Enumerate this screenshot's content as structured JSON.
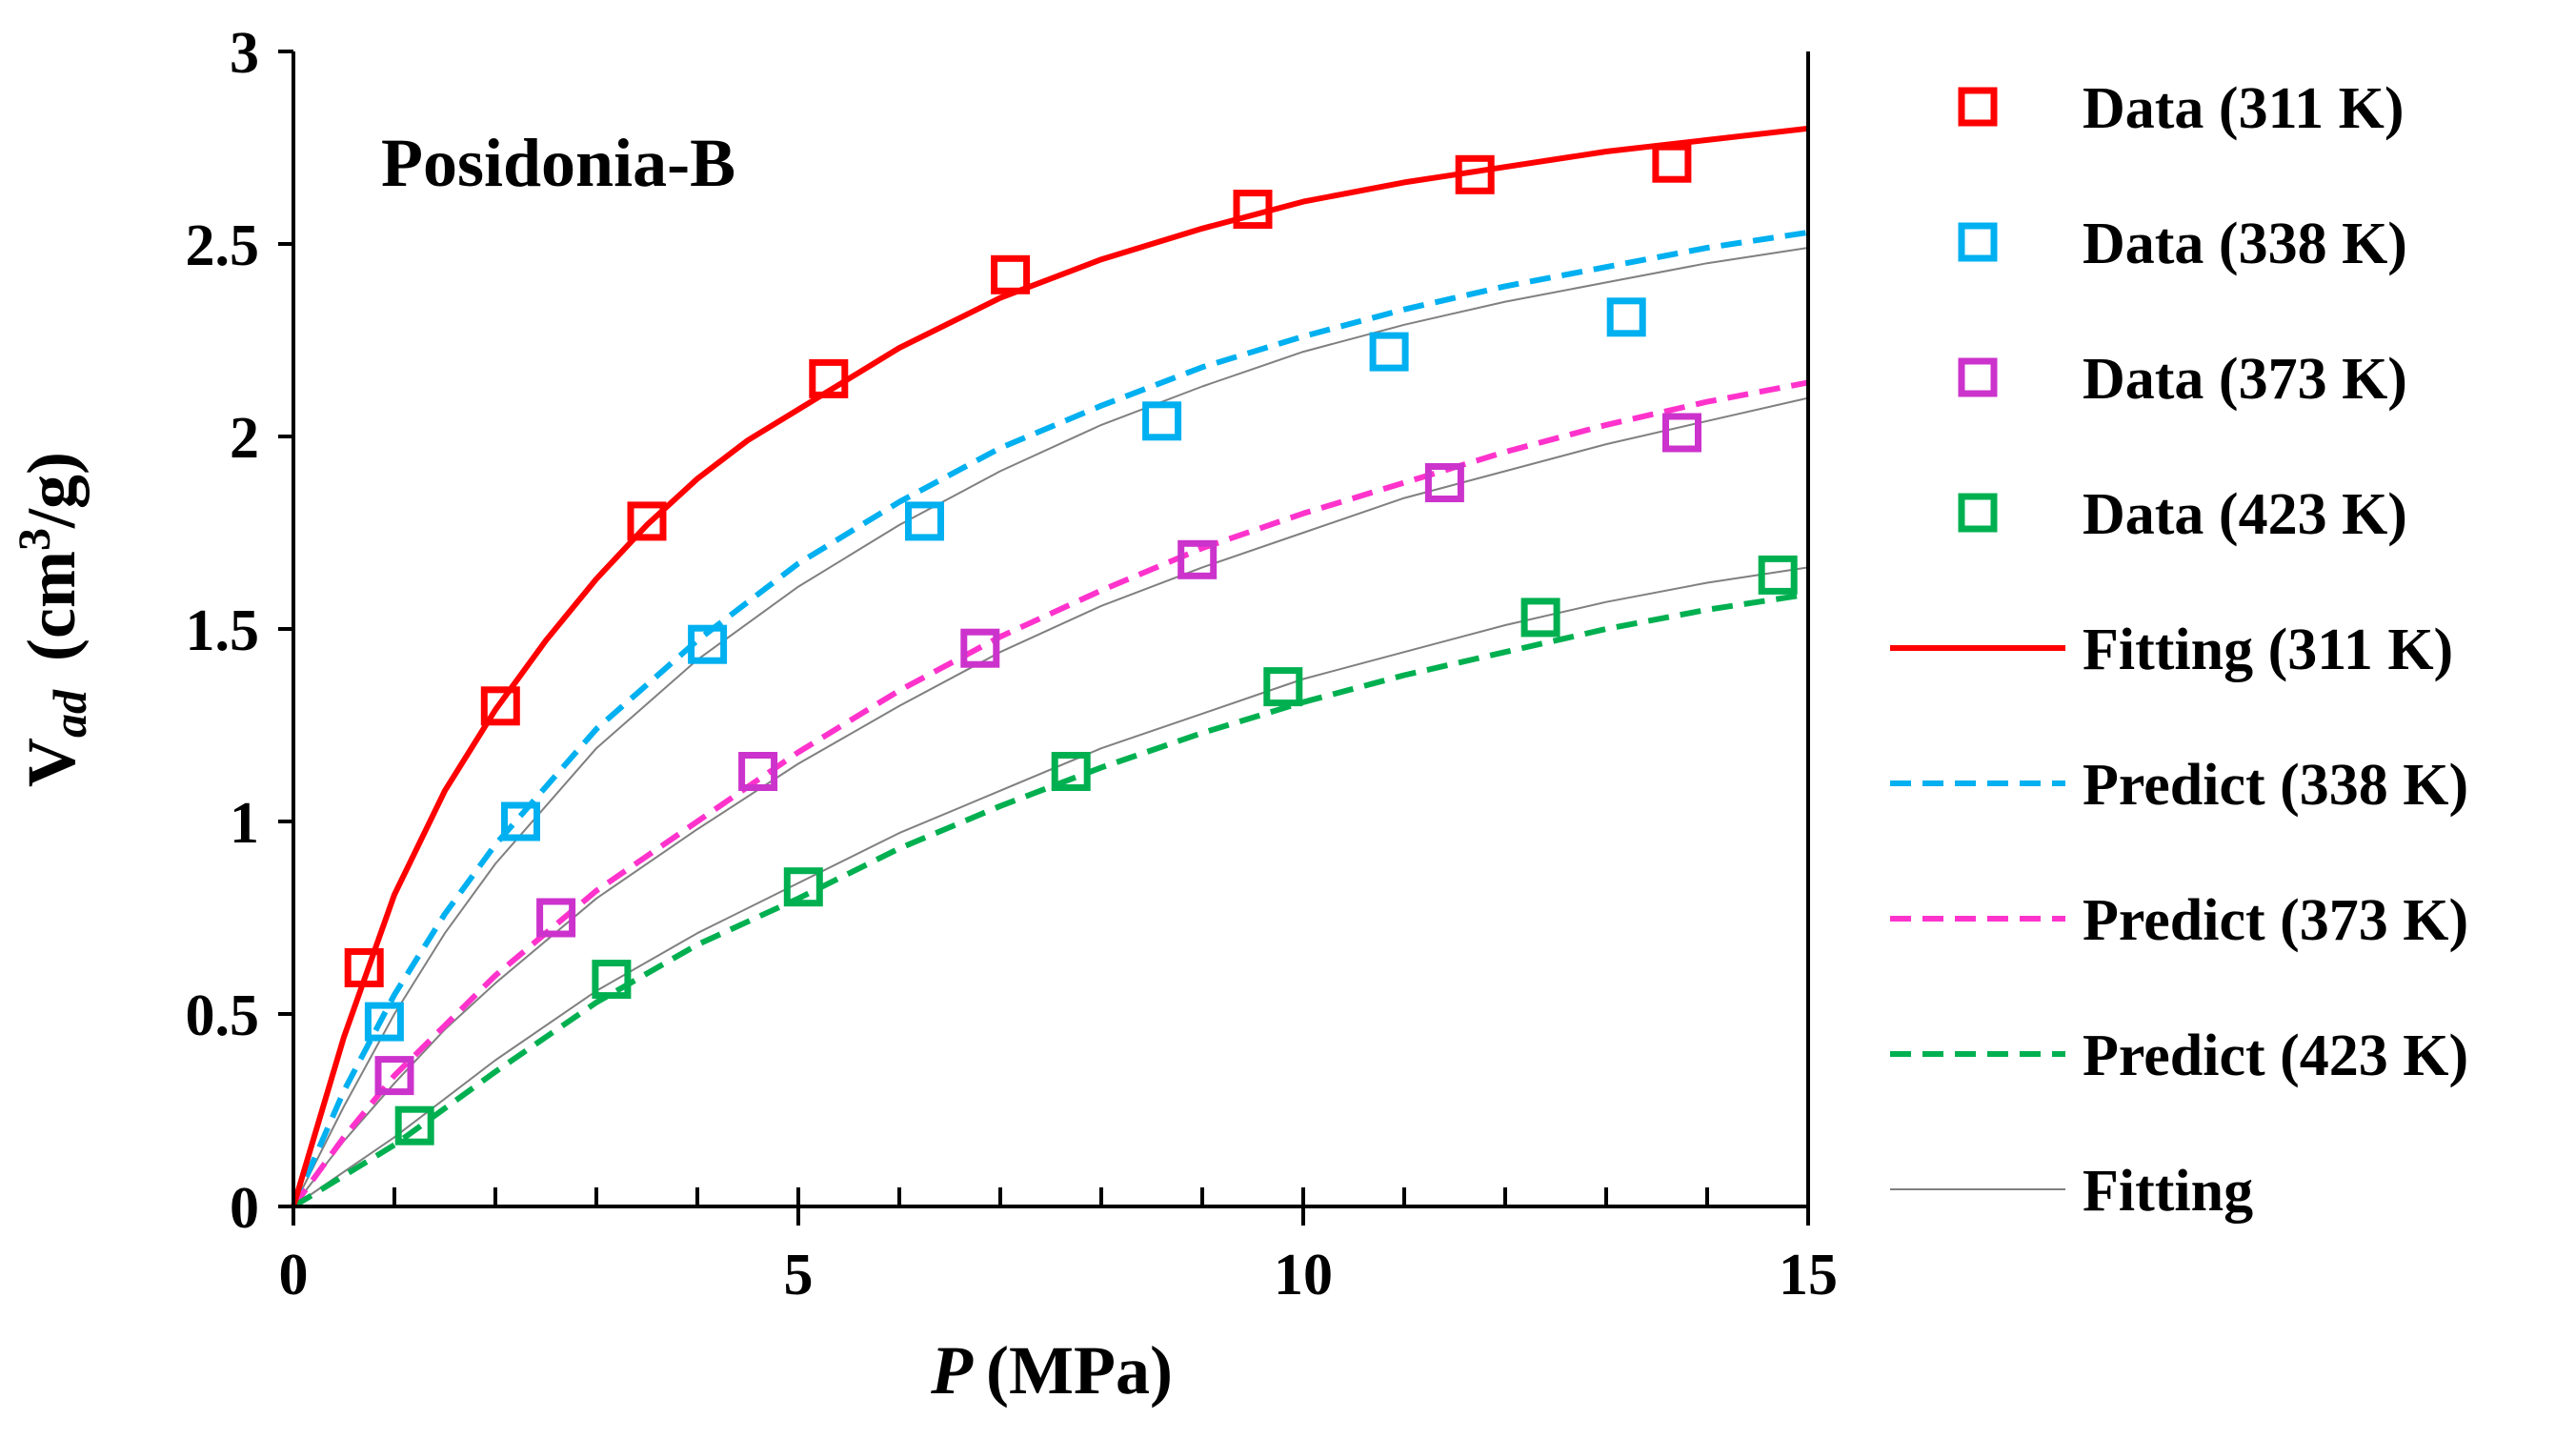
{
  "chart_data": {
    "type": "scatter",
    "title": "Posidonia-B",
    "xlabel_symbol": "P",
    "xlabel_unit": "(MPa)",
    "ylabel_main": "V",
    "ylabel_sub": "ad",
    "ylabel_unit_pre": "(cm",
    "ylabel_unit_sup": "3",
    "ylabel_unit_post": "/g)",
    "xlim": [
      0,
      15
    ],
    "ylim": [
      0,
      3
    ],
    "x_ticks": [
      0,
      5,
      10,
      15
    ],
    "x_tick_labels": [
      "0",
      "5",
      "10",
      "15"
    ],
    "x_minor_step": 1,
    "y_ticks": [
      0,
      0.5,
      1,
      1.5,
      2,
      2.5,
      3
    ],
    "y_tick_labels": [
      "0",
      "0.5",
      "1",
      "1.5",
      "2",
      "2.5",
      "3"
    ],
    "grid": false,
    "legend_position": "right",
    "series": [
      {
        "name": "Data (311 K)",
        "kind": "points",
        "color": "#ff0000",
        "x": [
          0.7,
          2.05,
          3.5,
          5.3,
          7.1,
          9.5,
          11.7,
          13.65
        ],
        "y": [
          0.62,
          1.3,
          1.78,
          2.15,
          2.42,
          2.59,
          2.68,
          2.71
        ]
      },
      {
        "name": "Data (338 K)",
        "kind": "points",
        "color": "#00b0f0",
        "x": [
          0.9,
          2.25,
          4.1,
          6.25,
          8.6,
          10.85,
          13.2
        ],
        "y": [
          0.48,
          1.0,
          1.46,
          1.78,
          2.04,
          2.22,
          2.31
        ]
      },
      {
        "name": "Data (373 K)",
        "kind": "points",
        "color": "#cc33cc",
        "x": [
          1.0,
          2.6,
          4.6,
          6.8,
          8.95,
          11.4,
          13.75
        ],
        "y": [
          0.34,
          0.75,
          1.13,
          1.45,
          1.68,
          1.88,
          2.01
        ]
      },
      {
        "name": "Data (423 K)",
        "kind": "points",
        "color": "#00b050",
        "x": [
          1.2,
          3.15,
          5.05,
          7.7,
          9.8,
          12.35,
          14.7
        ],
        "y": [
          0.21,
          0.59,
          0.83,
          1.13,
          1.35,
          1.53,
          1.64
        ]
      },
      {
        "name": "Fitting (311 K)",
        "kind": "curve",
        "style": "solid",
        "color": "#ff0000",
        "x": [
          0,
          0.5,
          1,
          1.5,
          2,
          2.5,
          3,
          3.5,
          4,
          4.5,
          5,
          6,
          7,
          8,
          9,
          10,
          11,
          12,
          13,
          14,
          15
        ],
        "y": [
          0,
          0.44,
          0.81,
          1.08,
          1.29,
          1.47,
          1.63,
          1.77,
          1.89,
          1.99,
          2.07,
          2.23,
          2.36,
          2.46,
          2.54,
          2.61,
          2.66,
          2.7,
          2.74,
          2.77,
          2.8
        ]
      },
      {
        "name": "Predict (338 K)",
        "kind": "curve",
        "style": "dashed",
        "color": "#00b0f0",
        "x": [
          0,
          0.5,
          1,
          1.5,
          2,
          3,
          4,
          5,
          6,
          7,
          8,
          9,
          10,
          11,
          12,
          13,
          14,
          15
        ],
        "y": [
          0,
          0.3,
          0.55,
          0.76,
          0.94,
          1.24,
          1.47,
          1.67,
          1.83,
          1.97,
          2.08,
          2.18,
          2.26,
          2.33,
          2.39,
          2.44,
          2.49,
          2.53
        ]
      },
      {
        "name": "Predict (373 K)",
        "kind": "curve",
        "style": "dashed",
        "color": "#ff33cc",
        "x": [
          0,
          0.5,
          1,
          1.5,
          2,
          3,
          4,
          5,
          6,
          7,
          8,
          9,
          10,
          11,
          12,
          13,
          14,
          15
        ],
        "y": [
          0,
          0.18,
          0.34,
          0.47,
          0.6,
          0.82,
          1.0,
          1.18,
          1.34,
          1.48,
          1.6,
          1.71,
          1.8,
          1.88,
          1.96,
          2.03,
          2.09,
          2.14
        ]
      },
      {
        "name": "Predict (423 K)",
        "kind": "curve",
        "style": "dashed",
        "color": "#00b050",
        "x": [
          0,
          1,
          2,
          3,
          4,
          5,
          6,
          7,
          8,
          9,
          10,
          11,
          12,
          13,
          14,
          15
        ],
        "y": [
          0,
          0.16,
          0.35,
          0.53,
          0.68,
          0.8,
          0.93,
          1.04,
          1.14,
          1.23,
          1.31,
          1.38,
          1.44,
          1.5,
          1.55,
          1.59
        ]
      },
      {
        "name": "Fitting",
        "kind": "curve",
        "style": "thin",
        "color": "#808080",
        "groups": [
          {
            "x": [
              0,
              0.5,
              1,
              1.5,
              2,
              3,
              4,
              5,
              6,
              7,
              8,
              9,
              10,
              11,
              12,
              13,
              14,
              15
            ],
            "y": [
              0,
              0.26,
              0.5,
              0.71,
              0.89,
              1.19,
              1.42,
              1.61,
              1.77,
              1.91,
              2.03,
              2.13,
              2.22,
              2.29,
              2.35,
              2.4,
              2.45,
              2.49
            ]
          },
          {
            "x": [
              0,
              0.5,
              1,
              1.5,
              2,
              3,
              4,
              5,
              6,
              7,
              8,
              9,
              10,
              11,
              12,
              13,
              14,
              15
            ],
            "y": [
              0,
              0.17,
              0.32,
              0.46,
              0.58,
              0.8,
              0.98,
              1.15,
              1.3,
              1.44,
              1.56,
              1.66,
              1.75,
              1.84,
              1.91,
              1.98,
              2.04,
              2.1
            ]
          },
          {
            "x": [
              0,
              1,
              2,
              3,
              4,
              5,
              6,
              7,
              8,
              9,
              10,
              11,
              12,
              13,
              14,
              15
            ],
            "y": [
              0,
              0.18,
              0.38,
              0.56,
              0.71,
              0.84,
              0.97,
              1.08,
              1.19,
              1.28,
              1.37,
              1.44,
              1.51,
              1.57,
              1.62,
              1.66
            ]
          }
        ]
      }
    ]
  }
}
